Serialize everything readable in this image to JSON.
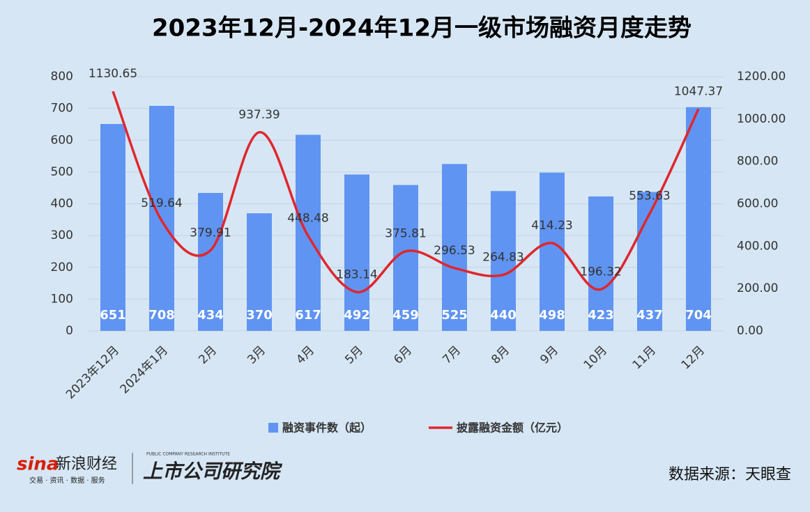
{
  "chart_data": {
    "type": "bar-line",
    "title": "2023年12月-2024年12月一级市场融资月度走势",
    "categories": [
      "2023年12月",
      "2024年1月",
      "2月",
      "3月",
      "4月",
      "5月",
      "6月",
      "7月",
      "8月",
      "9月",
      "10月",
      "11月",
      "12月"
    ],
    "series": [
      {
        "name": "融资事件数（起）",
        "type": "bar",
        "color": "#6094f2",
        "values": [
          651,
          708,
          434,
          370,
          617,
          492,
          459,
          525,
          440,
          498,
          423,
          437,
          704
        ]
      },
      {
        "name": "披露融资金额（亿元）",
        "type": "line",
        "axis": "y2",
        "color": "#e0262c",
        "values": [
          1130.65,
          519.64,
          379.91,
          937.39,
          448.48,
          183.14,
          375.81,
          296.53,
          264.83,
          414.23,
          196.32,
          553.63,
          1047.37
        ]
      }
    ],
    "ylim": [
      0,
      800
    ],
    "yticks": [
      0,
      100,
      200,
      300,
      400,
      500,
      600,
      700,
      800
    ],
    "y2lim": [
      0,
      1200
    ],
    "y2ticks": [
      {
        "value": 0,
        "label": "0.00"
      },
      {
        "value": 200,
        "label": "200.00"
      },
      {
        "value": 400,
        "label": "400.00"
      },
      {
        "value": 600,
        "label": "600.00"
      },
      {
        "value": 800,
        "label": "800.00"
      },
      {
        "value": 1000,
        "label": "1000.00"
      },
      {
        "value": 1200,
        "label": "1200.00"
      }
    ],
    "grid": true,
    "legend": "bottom"
  },
  "footer": {
    "brand": "新浪财经",
    "brand_tagline": "交易 · 资讯 · 数据 · 服务",
    "institute": "上市公司研究院",
    "institute_en": "PUBLIC COMPANY RESEARCH INSTITUTE",
    "source": "数据来源：天眼查"
  }
}
